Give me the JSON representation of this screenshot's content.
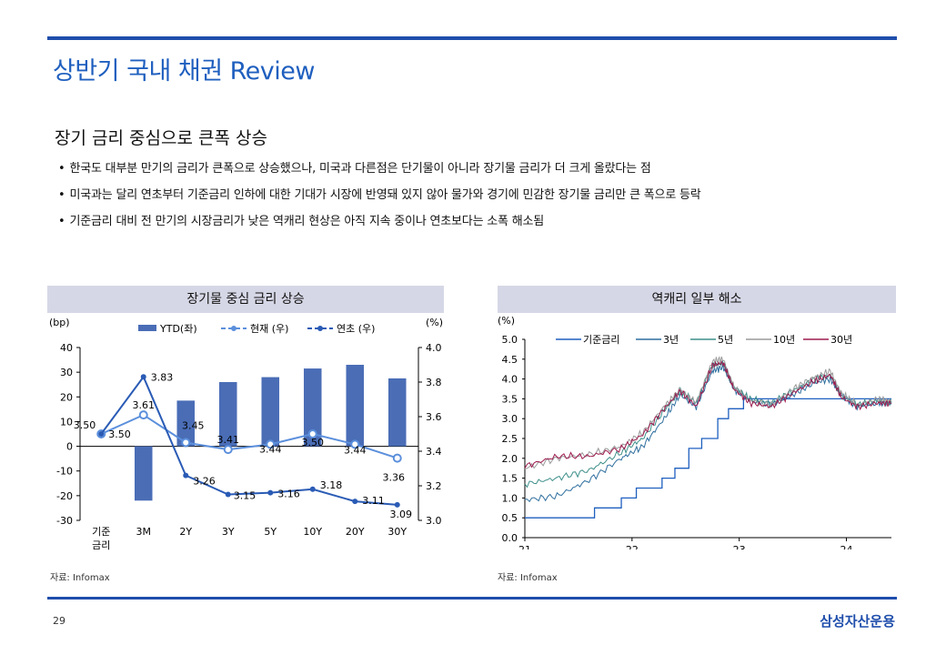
{
  "page": {
    "title": "상반기 국내 채권 Review",
    "heading": "장기 금리 중심으로 큰폭 상승",
    "bullets": [
      "한국도 대부분 만기의 금리가 큰폭으로 상승했으나, 미국과 다른점은 단기물이 아니라 장기물 금리가 더 크게 올랐다는 점",
      "미국과는 달리 연초부터 기준금리 인하에 대한 기대가 시장에 반영돼 있지 않아 물가와 경기에 민감한 장기물 금리만 큰 폭으로 등락",
      "기준금리 대비 전 만기의 시장금리가 낮은 역캐리 현상은 아직 지속 중이나 연초보다는 소폭 해소됨"
    ],
    "page_number": "29",
    "company": "삼성자산운용",
    "brand_color": "#1f4eab"
  },
  "chart_data": [
    {
      "type": "bar",
      "title": "장기물 중심 금리 상승",
      "source": "자료: Infomax",
      "categories": [
        "기준\n금리",
        "3M",
        "2Y",
        "3Y",
        "5Y",
        "10Y",
        "20Y",
        "30Y"
      ],
      "left_unit": "(bp)",
      "right_unit": "(%)",
      "ylim_left": [
        -30,
        40
      ],
      "ylim_right": [
        3.0,
        4.0
      ],
      "left_ticks": [
        "40",
        "30",
        "20",
        "10",
        "0",
        "-10",
        "-20",
        "-30"
      ],
      "right_ticks": [
        "4.0",
        "3.8",
        "3.6",
        "3.4",
        "3.2",
        "3.0"
      ],
      "legend": [
        "YTD(좌)",
        "현재 (우)",
        "연초 (우)"
      ],
      "series": [
        {
          "name": "YTD(좌)",
          "axis": "left",
          "kind": "bar",
          "color": "#4a6db6",
          "values": [
            0,
            -22,
            18.5,
            26,
            28,
            31.5,
            33,
            27.5
          ]
        },
        {
          "name": "현재 (우)",
          "axis": "right",
          "kind": "line",
          "color": "#5b8fdc",
          "marker": "open-circle",
          "values": [
            3.5,
            3.61,
            3.45,
            3.41,
            3.44,
            3.5,
            3.44,
            3.36
          ]
        },
        {
          "name": "연초 (우)",
          "axis": "right",
          "kind": "line",
          "color": "#2a5bb5",
          "marker": "filled-circle",
          "values": [
            3.5,
            3.83,
            3.26,
            3.15,
            3.16,
            3.18,
            3.11,
            3.09
          ]
        }
      ],
      "labels_current": [
        "3.50",
        "3.61",
        "3.45",
        "3.41",
        "3.44",
        "3.50",
        "3.44",
        "3.36"
      ],
      "labels_start": [
        "3.50",
        "3.83",
        "3.26",
        "3.15",
        "3.16",
        "3.18",
        "3.11",
        "3.09"
      ]
    },
    {
      "type": "line",
      "title": "역캐리 일부 해소",
      "source": "자료: Infomax",
      "y_unit": "(%)",
      "ylim": [
        0.0,
        5.0
      ],
      "y_ticks": [
        "5.0",
        "4.5",
        "4.0",
        "3.5",
        "3.0",
        "2.5",
        "2.0",
        "1.5",
        "1.0",
        "0.5",
        "0.0"
      ],
      "x_ticks": [
        "21",
        "22",
        "23",
        "24"
      ],
      "xlim": [
        2021.0,
        2024.42
      ],
      "legend": [
        "기준금리",
        "3년",
        "5년",
        "10년",
        "30년"
      ],
      "series": [
        {
          "name": "기준금리",
          "color": "#1f5fbf",
          "kind": "step",
          "points": [
            [
              2021.0,
              0.5
            ],
            [
              2021.65,
              0.75
            ],
            [
              2021.9,
              1.0
            ],
            [
              2022.04,
              1.25
            ],
            [
              2022.28,
              1.5
            ],
            [
              2022.4,
              1.75
            ],
            [
              2022.53,
              2.25
            ],
            [
              2022.65,
              2.5
            ],
            [
              2022.8,
              3.0
            ],
            [
              2022.9,
              3.25
            ],
            [
              2023.04,
              3.5
            ],
            [
              2024.42,
              3.5
            ]
          ]
        },
        {
          "name": "3년",
          "color": "#2f6f9f",
          "kind": "line",
          "points": [
            [
              2021.0,
              0.95
            ],
            [
              2021.3,
              1.05
            ],
            [
              2021.6,
              1.45
            ],
            [
              2021.9,
              2.0
            ],
            [
              2022.1,
              2.3
            ],
            [
              2022.3,
              3.0
            ],
            [
              2022.45,
              3.6
            ],
            [
              2022.6,
              3.3
            ],
            [
              2022.75,
              4.2
            ],
            [
              2022.85,
              4.3
            ],
            [
              2022.95,
              3.75
            ],
            [
              2023.1,
              3.45
            ],
            [
              2023.3,
              3.35
            ],
            [
              2023.5,
              3.6
            ],
            [
              2023.7,
              3.9
            ],
            [
              2023.85,
              4.0
            ],
            [
              2023.95,
              3.6
            ],
            [
              2024.1,
              3.3
            ],
            [
              2024.3,
              3.4
            ],
            [
              2024.42,
              3.38
            ]
          ]
        },
        {
          "name": "5년",
          "color": "#3d8f8a",
          "kind": "line",
          "points": [
            [
              2021.0,
              1.35
            ],
            [
              2021.3,
              1.5
            ],
            [
              2021.6,
              1.7
            ],
            [
              2021.9,
              2.15
            ],
            [
              2022.1,
              2.5
            ],
            [
              2022.3,
              3.2
            ],
            [
              2022.45,
              3.7
            ],
            [
              2022.6,
              3.4
            ],
            [
              2022.75,
              4.35
            ],
            [
              2022.85,
              4.4
            ],
            [
              2022.95,
              3.8
            ],
            [
              2023.1,
              3.5
            ],
            [
              2023.3,
              3.4
            ],
            [
              2023.5,
              3.7
            ],
            [
              2023.7,
              4.0
            ],
            [
              2023.85,
              4.1
            ],
            [
              2023.95,
              3.6
            ],
            [
              2024.1,
              3.35
            ],
            [
              2024.3,
              3.45
            ],
            [
              2024.42,
              3.4
            ]
          ]
        },
        {
          "name": "10년",
          "color": "#9a9a9a",
          "kind": "line",
          "points": [
            [
              2021.0,
              1.75
            ],
            [
              2021.3,
              2.0
            ],
            [
              2021.6,
              2.1
            ],
            [
              2021.9,
              2.3
            ],
            [
              2022.1,
              2.65
            ],
            [
              2022.3,
              3.3
            ],
            [
              2022.45,
              3.75
            ],
            [
              2022.6,
              3.4
            ],
            [
              2022.75,
              4.45
            ],
            [
              2022.85,
              4.5
            ],
            [
              2022.95,
              3.8
            ],
            [
              2023.1,
              3.45
            ],
            [
              2023.3,
              3.35
            ],
            [
              2023.5,
              3.75
            ],
            [
              2023.7,
              4.05
            ],
            [
              2023.85,
              4.2
            ],
            [
              2023.95,
              3.65
            ],
            [
              2024.1,
              3.35
            ],
            [
              2024.3,
              3.5
            ],
            [
              2024.42,
              3.45
            ]
          ]
        },
        {
          "name": "30년",
          "color": "#9e1b4f",
          "kind": "line",
          "points": [
            [
              2021.0,
              1.8
            ],
            [
              2021.3,
              2.05
            ],
            [
              2021.6,
              2.05
            ],
            [
              2021.9,
              2.25
            ],
            [
              2022.1,
              2.6
            ],
            [
              2022.3,
              3.25
            ],
            [
              2022.45,
              3.7
            ],
            [
              2022.6,
              3.3
            ],
            [
              2022.75,
              4.35
            ],
            [
              2022.85,
              4.4
            ],
            [
              2022.95,
              3.75
            ],
            [
              2023.1,
              3.4
            ],
            [
              2023.3,
              3.3
            ],
            [
              2023.5,
              3.65
            ],
            [
              2023.7,
              3.95
            ],
            [
              2023.85,
              4.1
            ],
            [
              2023.95,
              3.55
            ],
            [
              2024.1,
              3.3
            ],
            [
              2024.3,
              3.4
            ],
            [
              2024.42,
              3.38
            ]
          ]
        }
      ]
    }
  ]
}
